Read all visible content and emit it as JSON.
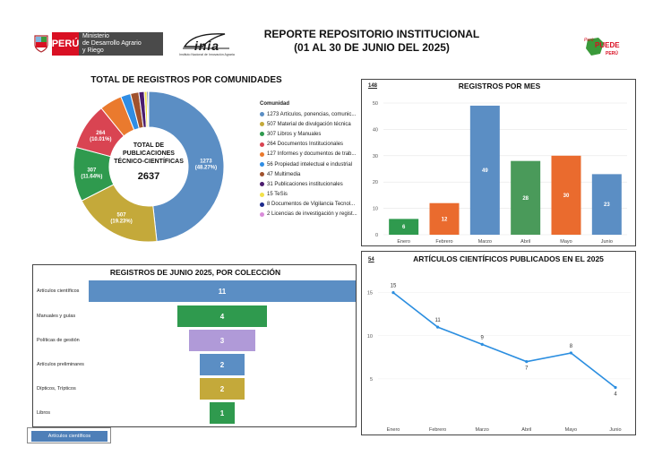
{
  "header": {
    "title_line1": "REPORTE REPOSITORIO INSTITUCIONAL",
    "title_line2": "(01 AL 30 DE JUNIO DEL 2025)",
    "peru_label": "PERÚ",
    "ministry_line1": "Ministerio",
    "ministry_line2": "de Desarrollo Agrario",
    "ministry_line3": "y Riego",
    "inia_label": "inia",
    "inia_sub": "Instituto Nacional de Innovación Agraria",
    "brand_line1": "Perú",
    "brand_line2": "PUEDE",
    "brand_line3": "PERÚ"
  },
  "chart_data": [
    {
      "type": "pie",
      "title": "TOTAL DE REGISTROS POR COMUNIDADES",
      "center_label_line1": "TOTAL DE",
      "center_label_line2": "PUBLICACIONES",
      "center_label_line3": "TÉCNICO-CIENTÍFICAS",
      "center_total": "2637",
      "legend_title": "Comunidad",
      "slices": [
        {
          "label": "1273 Artículos, ponencias, comunic...",
          "value": 1273,
          "pct": "(48.27%)",
          "color": "#5b8ec4"
        },
        {
          "label": "507 Material de divulgación técnica",
          "value": 507,
          "pct": "(19.23%)",
          "color": "#c4a93a"
        },
        {
          "label": "307 Libros y Manuales",
          "value": 307,
          "pct": "(11.64%)",
          "color": "#2f9a4e"
        },
        {
          "label": "264 Documentos Institucionales",
          "value": 264,
          "pct": "(10.01%)",
          "color": "#d94452"
        },
        {
          "label": "127 Informes y documentos de trab...",
          "value": 127,
          "pct": "",
          "color": "#ea7a2e"
        },
        {
          "label": "56 Propiedad intelectual e industrial",
          "value": 56,
          "pct": "",
          "color": "#2f8de4"
        },
        {
          "label": "47 Multimedia",
          "value": 47,
          "pct": "",
          "color": "#a0522d"
        },
        {
          "label": "31 Publicaciones institucionales",
          "value": 31,
          "pct": "",
          "color": "#4b1c6e"
        },
        {
          "label": "15 TeSis",
          "value": 15,
          "pct": "",
          "color": "#f2e14a"
        },
        {
          "label": "8 Documentos de Vigilancia Tecnol...",
          "value": 8,
          "pct": "",
          "color": "#1c2a8c"
        },
        {
          "label": "2 Licencias de investigación y regist...",
          "value": 2,
          "pct": "",
          "color": "#d98cd9"
        }
      ]
    },
    {
      "type": "bar",
      "title": "REGISTROS POR MES",
      "total_label": "148",
      "categories": [
        "Enero",
        "Febrero",
        "Marzo",
        "Abril",
        "Mayo",
        "Junio"
      ],
      "values": [
        6,
        12,
        49,
        28,
        30,
        23
      ],
      "colors": [
        "#2f9a4e",
        "#ea6b2e",
        "#5b8ec4",
        "#4a9a5a",
        "#ea6b2e",
        "#5b8ec4"
      ],
      "ylim": [
        0,
        50
      ],
      "yticks": [
        0,
        10,
        20,
        30,
        40,
        50
      ]
    },
    {
      "type": "bar",
      "title": "REGISTROS DE JUNIO 2025, POR COLECCIÓN",
      "categories": [
        "Artículos científicos",
        "Manuales y guías",
        "Políticas de gestión",
        "Artículos preliminares",
        "Dípticos, Trípticos",
        "Libros"
      ],
      "values": [
        11,
        4,
        3,
        2,
        2,
        1
      ],
      "colors": [
        "#5b8ec4",
        "#2f9a4e",
        "#b09ad8",
        "#5b8ec4",
        "#c4a93a",
        "#2f9a4e"
      ],
      "filter_label": "Artículos científicos"
    },
    {
      "type": "line",
      "title": "ARTÍCULOS CIENTÍFICOS PUBLICADOS EN EL 2025",
      "total_label": "54",
      "categories": [
        "Enero",
        "Febrero",
        "Marzo",
        "Abril",
        "Mayo",
        "Junio"
      ],
      "values": [
        15,
        11,
        9,
        7,
        8,
        4
      ],
      "color": "#2b8ee0",
      "ylim": [
        0,
        16
      ],
      "yticks": [
        5,
        10,
        15
      ]
    }
  ]
}
